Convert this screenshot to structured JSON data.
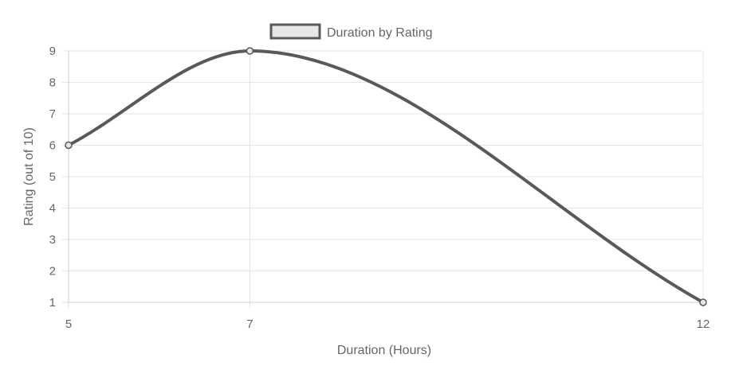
{
  "chart_data": {
    "type": "line",
    "x": [
      5,
      7,
      12
    ],
    "series": [
      {
        "name": "Duration by Rating",
        "values": [
          6,
          9,
          1
        ]
      }
    ],
    "xlabel": "Duration (Hours)",
    "ylabel": "Rating (out of 10)",
    "xticks": [
      5,
      7,
      12
    ],
    "xlim": [
      5,
      12
    ],
    "ylim": [
      1,
      9
    ],
    "yticks": [
      1,
      2,
      3,
      4,
      5,
      6,
      7,
      8,
      9
    ],
    "grid": true,
    "legend_position": "top-center",
    "smooth": true,
    "colors": {
      "line": "#595959",
      "legend_fill": "#e6e6e6"
    }
  }
}
